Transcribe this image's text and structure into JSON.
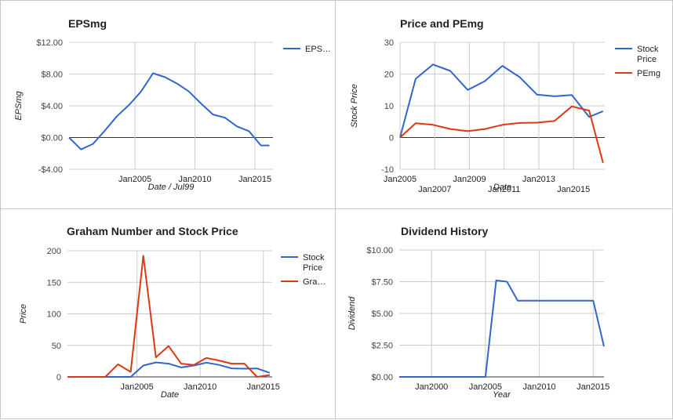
{
  "colors": {
    "blue": "#3366cc",
    "red": "#dc3912",
    "grid": "#cccccc",
    "zero": "#333333",
    "text": "#222222",
    "axisText": "#444444"
  },
  "chart_data": [
    {
      "id": "p1",
      "type": "line",
      "title": "EPSmg",
      "xlabel": "Date / Jul99",
      "ylabel": "EPSmg",
      "xlim": [
        1999.5,
        2016.5
      ],
      "ylim": [
        -4,
        12
      ],
      "x_ticks": [
        {
          "v": 2005,
          "label": "Jan2005"
        },
        {
          "v": 2010,
          "label": "Jan2010"
        },
        {
          "v": 2015,
          "label": "Jan2015"
        }
      ],
      "y_ticks": [
        {
          "v": -4,
          "label": "-$4.00"
        },
        {
          "v": 0,
          "label": "$0.00"
        },
        {
          "v": 4,
          "label": "$4.00"
        },
        {
          "v": 8,
          "label": "$8.00"
        },
        {
          "v": 12,
          "label": "$12.00"
        }
      ],
      "legend": "right",
      "series": [
        {
          "name": "EPS…",
          "color": "blue",
          "x": [
            1999.5,
            2000.5,
            2001.5,
            2002.5,
            2003.5,
            2004.5,
            2005.5,
            2006.5,
            2007.5,
            2008.5,
            2009.5,
            2010.5,
            2011.5,
            2012.5,
            2013.5,
            2014.5,
            2015.5,
            2016.2
          ],
          "y": [
            0.0,
            -1.5,
            -0.8,
            0.9,
            2.7,
            4.1,
            5.8,
            8.1,
            7.6,
            6.8,
            5.8,
            4.3,
            2.9,
            2.5,
            1.4,
            0.8,
            -1.0,
            -1.0
          ]
        }
      ]
    },
    {
      "id": "p2",
      "type": "line",
      "title": "Price and PEmg",
      "xlabel": "Date",
      "ylabel": "Stock Price",
      "xlim": [
        2005,
        2016.8
      ],
      "ylim": [
        -10,
        30
      ],
      "x_ticks": [
        {
          "v": 2005,
          "label": "Jan2005",
          "row": 0
        },
        {
          "v": 2007,
          "label": "Jan2007",
          "row": 1
        },
        {
          "v": 2009,
          "label": "Jan2009",
          "row": 0
        },
        {
          "v": 2011,
          "label": "Jan2011",
          "row": 1
        },
        {
          "v": 2013,
          "label": "Jan2013",
          "row": 0
        },
        {
          "v": 2015,
          "label": "Jan2015",
          "row": 1
        }
      ],
      "y_ticks": [
        {
          "v": -10,
          "label": "-10"
        },
        {
          "v": 0,
          "label": "0"
        },
        {
          "v": 10,
          "label": "10"
        },
        {
          "v": 20,
          "label": "20"
        },
        {
          "v": 30,
          "label": "30"
        }
      ],
      "legend": "right",
      "series": [
        {
          "name": "Stock Price",
          "color": "blue",
          "x": [
            2005.0,
            2005.9,
            2006.9,
            2007.9,
            2008.9,
            2009.9,
            2010.9,
            2011.9,
            2012.9,
            2013.9,
            2014.9,
            2015.9,
            2016.7
          ],
          "y": [
            0.0,
            18.5,
            23.0,
            21.0,
            15.0,
            17.8,
            22.6,
            19.0,
            13.5,
            13.0,
            13.4,
            6.5,
            8.3
          ]
        },
        {
          "name": "PEmg",
          "color": "red",
          "x": [
            2005.0,
            2005.9,
            2006.9,
            2007.9,
            2008.9,
            2009.9,
            2010.9,
            2011.9,
            2012.9,
            2013.9,
            2014.9,
            2015.9,
            2016.7
          ],
          "y": [
            0.0,
            4.5,
            4.0,
            2.7,
            2.0,
            2.7,
            4.0,
            4.6,
            4.7,
            5.2,
            9.8,
            8.5,
            -8.0
          ]
        }
      ]
    },
    {
      "id": "p3",
      "type": "line",
      "title": "Graham Number and Stock Price",
      "xlabel": "Date",
      "ylabel": "Price",
      "xlim": [
        2000,
        2016.2
      ],
      "ylim": [
        0,
        200
      ],
      "x_ticks": [
        {
          "v": 2005.5,
          "label": "Jan2005"
        },
        {
          "v": 2010.5,
          "label": "Jan2010"
        },
        {
          "v": 2015.5,
          "label": "Jan2015"
        }
      ],
      "y_ticks": [
        {
          "v": 0,
          "label": "0"
        },
        {
          "v": 50,
          "label": "50"
        },
        {
          "v": 100,
          "label": "100"
        },
        {
          "v": 150,
          "label": "150"
        },
        {
          "v": 200,
          "label": "200"
        }
      ],
      "legend": "right",
      "series": [
        {
          "name": "Stock Price",
          "color": "blue",
          "x": [
            2000.0,
            2001.0,
            2002.0,
            2003.0,
            2004.0,
            2005.0,
            2006.0,
            2007.0,
            2008.0,
            2009.0,
            2010.0,
            2011.0,
            2012.0,
            2013.0,
            2014.0,
            2015.0,
            2016.0
          ],
          "y": [
            0,
            0,
            0,
            0,
            0,
            0,
            18,
            23,
            21,
            15,
            18,
            22.6,
            19,
            13.5,
            13,
            13.4,
            6.5
          ]
        },
        {
          "name": "Gra…",
          "color": "red",
          "x": [
            2000.0,
            2001.0,
            2002.0,
            2003.0,
            2004.0,
            2005.0,
            2006.0,
            2007.0,
            2008.0,
            2009.0,
            2010.0,
            2011.0,
            2012.0,
            2013.0,
            2014.0,
            2015.0,
            2016.0
          ],
          "y": [
            0,
            0,
            0,
            0,
            20,
            8,
            192,
            31,
            49,
            21,
            19,
            30,
            26,
            21,
            21,
            0,
            3
          ]
        }
      ]
    },
    {
      "id": "p4",
      "type": "line",
      "title": "Dividend History",
      "xlabel": "Year",
      "ylabel": "Dividend",
      "xlim": [
        1997,
        2016
      ],
      "ylim": [
        0,
        10
      ],
      "x_ticks": [
        {
          "v": 2000,
          "label": "Jan2000"
        },
        {
          "v": 2005,
          "label": "Jan2005"
        },
        {
          "v": 2010,
          "label": "Jan2010"
        },
        {
          "v": 2015,
          "label": "Jan2015"
        }
      ],
      "y_ticks": [
        {
          "v": 0,
          "label": "$0.00"
        },
        {
          "v": 2.5,
          "label": "$2.50"
        },
        {
          "v": 5,
          "label": "$5.00"
        },
        {
          "v": 7.5,
          "label": "$7.50"
        },
        {
          "v": 10,
          "label": "$10.00"
        }
      ],
      "legend": "none",
      "series": [
        {
          "name": "",
          "color": "blue",
          "x": [
            1997,
            1998,
            1999,
            2000,
            2001,
            2002,
            2003,
            2004,
            2005,
            2006,
            2007,
            2008,
            2009,
            2010,
            2011,
            2012,
            2013,
            2014,
            2015,
            2016
          ],
          "y": [
            0,
            0,
            0,
            0,
            0,
            0,
            0,
            0,
            0,
            7.6,
            7.5,
            6.0,
            6.0,
            6.0,
            6.0,
            6.0,
            6.0,
            6.0,
            6.0,
            2.4
          ]
        }
      ]
    }
  ]
}
